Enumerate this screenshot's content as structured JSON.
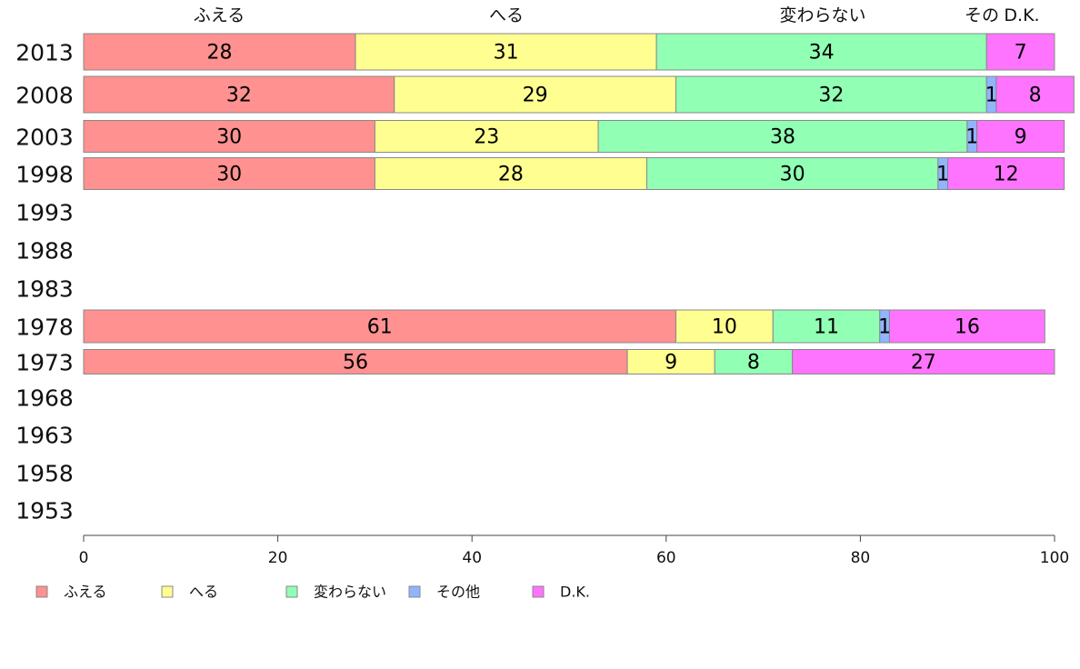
{
  "chart_data": {
    "type": "bar",
    "orientation": "horizontal",
    "stacked": true,
    "title": "",
    "xlabel": "",
    "ylabel": "",
    "xlim": [
      0,
      100
    ],
    "x_ticks": [
      "0",
      "20",
      "40",
      "60",
      "80",
      "100"
    ],
    "grid": false,
    "legend_position": "bottom",
    "top_labels": [
      "ふえる",
      "へる",
      "変わらない",
      "その",
      "D.K."
    ],
    "categories": [
      "2013",
      "2008",
      "2003",
      "1998",
      "1993",
      "1988",
      "1983",
      "1978",
      "1973",
      "1968",
      "1963",
      "1958",
      "1953"
    ],
    "series": [
      {
        "name": "ふえる",
        "color": "#ff9191",
        "values": [
          28,
          32,
          30,
          30,
          null,
          null,
          null,
          61,
          56,
          null,
          null,
          null,
          null
        ]
      },
      {
        "name": "へる",
        "color": "#ffff91",
        "values": [
          31,
          29,
          23,
          28,
          null,
          null,
          null,
          10,
          9,
          null,
          null,
          null,
          null
        ]
      },
      {
        "name": "変わらない",
        "color": "#91ffb4",
        "values": [
          34,
          32,
          38,
          30,
          null,
          null,
          null,
          11,
          8,
          null,
          null,
          null,
          null
        ]
      },
      {
        "name": "その他",
        "color": "#91b4ff",
        "values": [
          0,
          1,
          1,
          1,
          null,
          null,
          null,
          1,
          0,
          null,
          null,
          null,
          null
        ]
      },
      {
        "name": "D.K.",
        "color": "#ff74ff",
        "values": [
          7,
          8,
          9,
          12,
          null,
          null,
          null,
          16,
          27,
          null,
          null,
          null,
          null
        ]
      }
    ]
  }
}
